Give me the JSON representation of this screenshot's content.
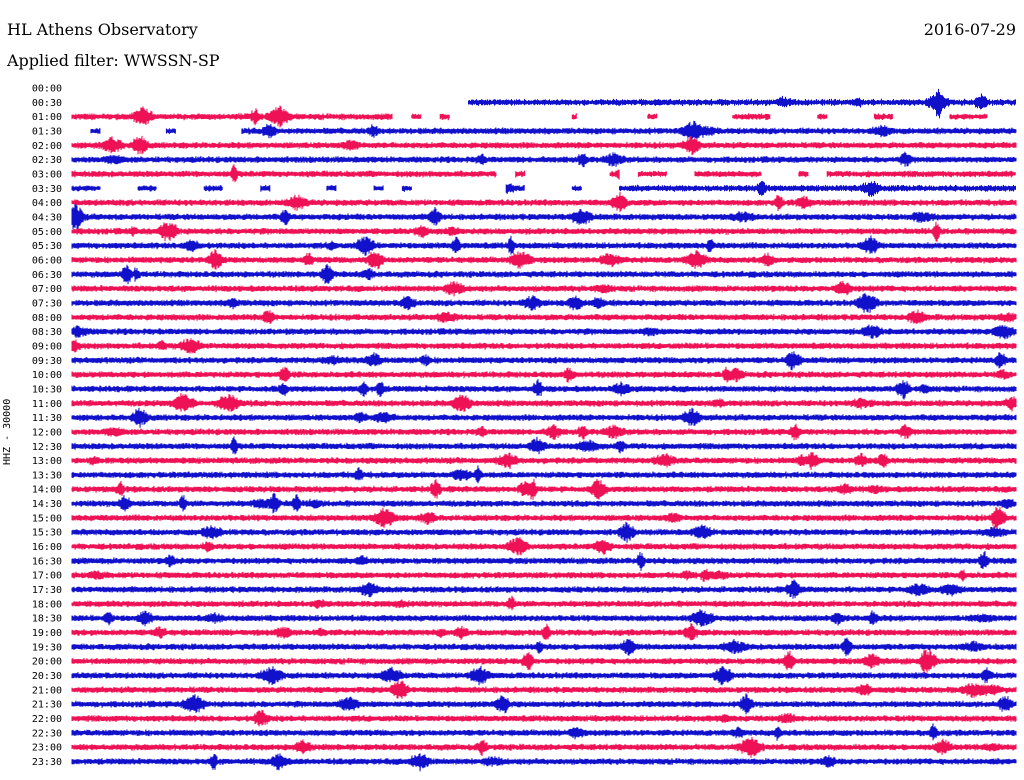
{
  "header": {
    "station": "HL Athens Observatory",
    "date": "2016-07-29",
    "filter": "Applied filter: WWSSN-SP"
  },
  "chart_data": {
    "type": "line",
    "ylabel": "HHZ - 30000",
    "row_labels": [
      "00:00",
      "00:30",
      "01:00",
      "01:30",
      "02:00",
      "02:30",
      "03:00",
      "03:30",
      "04:00",
      "04:30",
      "05:00",
      "05:30",
      "06:00",
      "06:30",
      "07:00",
      "07:30",
      "08:00",
      "08:30",
      "09:00",
      "09:30",
      "10:00",
      "10:30",
      "11:00",
      "11:30",
      "12:00",
      "12:30",
      "13:00",
      "13:30",
      "14:00",
      "14:30",
      "15:00",
      "15:30",
      "16:00",
      "16:30",
      "17:00",
      "17:30",
      "18:00",
      "18:30",
      "19:00",
      "19:30",
      "20:00",
      "20:30",
      "21:00",
      "21:30",
      "22:00",
      "22:30",
      "23:00",
      "23:30"
    ],
    "row_colors": [
      "#ee1155",
      "#1111cc"
    ],
    "row_coverage": [
      [],
      [
        [
          0.42,
          1.0
        ]
      ],
      [
        [
          0.0,
          0.34
        ],
        [
          0.36,
          0.37
        ],
        [
          0.39,
          0.4
        ],
        [
          0.53,
          0.535
        ],
        [
          0.61,
          0.62
        ],
        [
          0.7,
          0.74
        ],
        [
          0.79,
          0.8
        ],
        [
          0.85,
          0.87
        ],
        [
          0.93,
          0.97
        ]
      ],
      [
        [
          0.02,
          0.03
        ],
        [
          0.1,
          0.11
        ],
        [
          0.18,
          1.0
        ]
      ],
      [
        [
          0.0,
          1.0
        ]
      ],
      [
        [
          0.0,
          1.0
        ]
      ],
      [
        [
          0.0,
          0.45
        ],
        [
          0.47,
          0.48
        ],
        [
          0.57,
          0.58
        ],
        [
          0.6,
          0.63
        ],
        [
          0.66,
          0.73
        ],
        [
          0.77,
          0.78
        ],
        [
          0.8,
          1.0
        ]
      ],
      [
        [
          0.0,
          0.03
        ],
        [
          0.07,
          0.09
        ],
        [
          0.14,
          0.16
        ],
        [
          0.2,
          0.21
        ],
        [
          0.27,
          0.28
        ],
        [
          0.32,
          0.33
        ],
        [
          0.35,
          0.36
        ],
        [
          0.46,
          0.48
        ],
        [
          0.53,
          0.54
        ],
        [
          0.58,
          1.0
        ]
      ],
      [
        [
          0.0,
          1.0
        ]
      ],
      [
        [
          0.0,
          1.0
        ]
      ],
      [
        [
          0.0,
          1.0
        ]
      ],
      [
        [
          0.0,
          1.0
        ]
      ],
      [
        [
          0.0,
          1.0
        ]
      ],
      [
        [
          0.0,
          1.0
        ]
      ],
      [
        [
          0.0,
          1.0
        ]
      ],
      [
        [
          0.0,
          1.0
        ]
      ],
      [
        [
          0.0,
          1.0
        ]
      ],
      [
        [
          0.0,
          1.0
        ]
      ],
      [
        [
          0.0,
          1.0
        ]
      ],
      [
        [
          0.0,
          1.0
        ]
      ],
      [
        [
          0.0,
          1.0
        ]
      ],
      [
        [
          0.0,
          1.0
        ]
      ],
      [
        [
          0.0,
          1.0
        ]
      ],
      [
        [
          0.0,
          1.0
        ]
      ],
      [
        [
          0.0,
          1.0
        ]
      ],
      [
        [
          0.0,
          1.0
        ]
      ],
      [
        [
          0.0,
          1.0
        ]
      ],
      [
        [
          0.0,
          1.0
        ]
      ],
      [
        [
          0.0,
          1.0
        ]
      ],
      [
        [
          0.0,
          1.0
        ]
      ],
      [
        [
          0.0,
          1.0
        ]
      ],
      [
        [
          0.0,
          1.0
        ]
      ],
      [
        [
          0.0,
          1.0
        ]
      ],
      [
        [
          0.0,
          1.0
        ]
      ],
      [
        [
          0.0,
          1.0
        ]
      ],
      [
        [
          0.0,
          1.0
        ]
      ],
      [
        [
          0.0,
          1.0
        ]
      ],
      [
        [
          0.0,
          1.0
        ]
      ],
      [
        [
          0.0,
          1.0
        ]
      ],
      [
        [
          0.0,
          1.0
        ]
      ],
      [
        [
          0.0,
          1.0
        ]
      ],
      [
        [
          0.0,
          1.0
        ]
      ],
      [
        [
          0.0,
          1.0
        ]
      ],
      [
        [
          0.0,
          1.0
        ]
      ],
      [
        [
          0.0,
          1.0
        ]
      ],
      [
        [
          0.0,
          1.0
        ]
      ],
      [
        [
          0.0,
          1.0
        ]
      ],
      [
        [
          0.0,
          1.0
        ]
      ]
    ]
  }
}
